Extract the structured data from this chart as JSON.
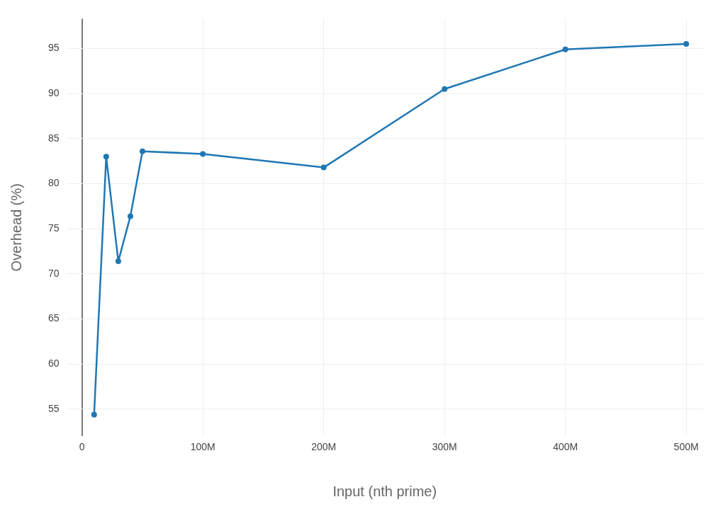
{
  "chart_data": {
    "type": "line",
    "xlabel": "Input (nth prime)",
    "ylabel": "Overhead (%)",
    "x": [
      10000000,
      20000000,
      30000000,
      40000000,
      50000000,
      100000000,
      200000000,
      300000000,
      400000000,
      500000000
    ],
    "series": [
      {
        "color": "#1f77b4",
        "values": [
          54.4,
          83.0,
          71.4,
          76.4,
          83.6,
          83.3,
          81.8,
          90.5,
          94.9,
          95.5
        ]
      }
    ],
    "xlim": [
      -13000000,
      514000000
    ],
    "xticks": [
      0,
      {
        "value": 100000000,
        "label": "100M"
      },
      {
        "value": 200000000,
        "label": "200M"
      },
      {
        "value": 300000000,
        "label": "300M"
      },
      {
        "value": 400000000,
        "label": "400M"
      },
      {
        "value": 500000000,
        "label": "500M"
      }
    ],
    "ylim": [
      52,
      98.3
    ],
    "yticks": [
      55,
      60,
      65,
      70,
      75,
      80,
      85,
      90,
      95
    ],
    "grid": true,
    "legend": false,
    "marker": "circle",
    "line_style": "solid"
  }
}
